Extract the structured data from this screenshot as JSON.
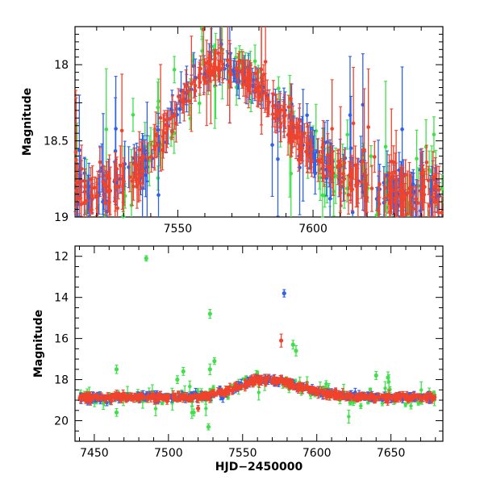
{
  "chart_data": [
    {
      "type": "scatter",
      "panel": "top",
      "title": "",
      "xlabel": "",
      "ylabel": "Magnitude",
      "xlim": [
        7512,
        7648
      ],
      "ylim": [
        19.0,
        17.75
      ],
      "y_inverted": true,
      "error_bars": true,
      "xticks": [
        7550,
        7600
      ],
      "yticks": [
        18,
        18.5,
        19
      ],
      "yticks_labels": [
        "18",
        "18.5",
        "19"
      ],
      "grid": false,
      "legend": "none",
      "series": [
        {
          "color": "#2e62e8",
          "shape": "Light curve following a rise from ~18.85 mag near HJD 7512 to a peak near ~18.0 mag around HJD 7555–7575, then declining back to ~18.8 mag by HJD 7648"
        },
        {
          "color": "#3fe04a",
          "shape": "Same light curve, noisier with more outliers"
        },
        {
          "color": "#f0432c",
          "shape": "Same light curve, densely sampled"
        }
      ]
    },
    {
      "type": "scatter",
      "panel": "bottom",
      "title": "",
      "xlabel": "HJD−2450000",
      "ylabel": "Magnitude",
      "xlim": [
        7437,
        7685
      ],
      "ylim": [
        21.0,
        11.5
      ],
      "y_inverted": true,
      "error_bars": true,
      "xticks": [
        7450,
        7500,
        7550,
        7600,
        7650
      ],
      "yticks": [
        12,
        14,
        16,
        18,
        20
      ],
      "grid": false,
      "legend": "none",
      "outliers": [
        {
          "x": 7485,
          "y": 12.1,
          "color": "#3fe04a"
        },
        {
          "x": 7528,
          "y": 14.8,
          "color": "#3fe04a"
        },
        {
          "x": 7578,
          "y": 13.8,
          "color": "#2e62e8"
        },
        {
          "x": 7576,
          "y": 16.1,
          "color": "#f0432c"
        },
        {
          "x": 7531,
          "y": 17.1,
          "color": "#3fe04a"
        },
        {
          "x": 7528,
          "y": 17.5,
          "color": "#3fe04a"
        },
        {
          "x": 7584,
          "y": 16.3,
          "color": "#3fe04a"
        },
        {
          "x": 7586,
          "y": 16.6,
          "color": "#3fe04a"
        },
        {
          "x": 7465,
          "y": 17.5,
          "color": "#3fe04a"
        },
        {
          "x": 7465,
          "y": 19.6,
          "color": "#3fe04a"
        },
        {
          "x": 7527,
          "y": 20.3,
          "color": "#3fe04a"
        },
        {
          "x": 7520,
          "y": 19.4,
          "color": "#f0432c"
        },
        {
          "x": 7517,
          "y": 19.6,
          "color": "#3fe04a"
        },
        {
          "x": 7640,
          "y": 17.8,
          "color": "#3fe04a"
        },
        {
          "x": 7648,
          "y": 17.9,
          "color": "#3fe04a"
        },
        {
          "x": 7506,
          "y": 18.0,
          "color": "#3fe04a"
        },
        {
          "x": 7510,
          "y": 17.6,
          "color": "#3fe04a"
        }
      ]
    }
  ],
  "colors": {
    "blue": "#2e62e8",
    "green": "#3fe04a",
    "red": "#f0432c",
    "axis": "#000000"
  }
}
